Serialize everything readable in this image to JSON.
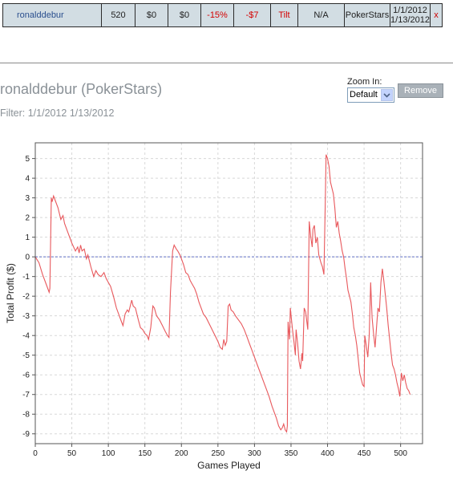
{
  "results_row": {
    "player": "ronalddebur",
    "games": "520",
    "col3": "$0",
    "col4": "$0",
    "roi": "-15%",
    "profit": "-$7",
    "status": "Tilt",
    "col8": "N/A",
    "site": "PokerStars",
    "date_from": "1/1/2012",
    "date_to": "1/13/2012",
    "close_glyph": "x"
  },
  "header": {
    "title": "ronalddebur (PokerStars)",
    "filter": "Filter: 1/1/2012 1/13/2012"
  },
  "zoom": {
    "label": "Zoom In:",
    "selected": "Default"
  },
  "remove_label": "Remove",
  "colors": {
    "line": "#e8585c",
    "zero_line": "#6070c8",
    "grid": "#d8d8d8",
    "table_bg": "#d2dde3",
    "negative_text": "#d40000"
  },
  "chart_data": {
    "type": "line",
    "xlabel": "Games Played",
    "ylabel": "Total Profit ($)",
    "xlim": [
      0,
      530
    ],
    "ylim": [
      -9.5,
      5.8
    ],
    "xticks": [
      0,
      50,
      100,
      150,
      200,
      250,
      300,
      350,
      400,
      450,
      500
    ],
    "yticks": [
      5,
      4,
      3,
      2,
      1,
      0,
      -1,
      -2,
      -3,
      -4,
      -5,
      -6,
      -7,
      -8,
      -9
    ],
    "grid": true,
    "zero_line": true,
    "series": [
      {
        "points": [
          [
            0,
            0
          ],
          [
            5,
            -0.3
          ],
          [
            10,
            -0.9
          ],
          [
            15,
            -1.4
          ],
          [
            19,
            -1.8
          ],
          [
            20,
            -1.6
          ],
          [
            22,
            3.0
          ],
          [
            23,
            2.8
          ],
          [
            25,
            3.1
          ],
          [
            28,
            2.8
          ],
          [
            31,
            2.5
          ],
          [
            33,
            2.2
          ],
          [
            35,
            1.9
          ],
          [
            38,
            2.1
          ],
          [
            40,
            1.7
          ],
          [
            45,
            1.2
          ],
          [
            50,
            0.7
          ],
          [
            55,
            0.3
          ],
          [
            58,
            0.5
          ],
          [
            60,
            0.2
          ],
          [
            62,
            0.6
          ],
          [
            64,
            0.3
          ],
          [
            67,
            0.4
          ],
          [
            70,
            -0.1
          ],
          [
            72,
            0.1
          ],
          [
            76,
            -0.5
          ],
          [
            80,
            -1.0
          ],
          [
            83,
            -0.7
          ],
          [
            86,
            -0.9
          ],
          [
            90,
            -1.0
          ],
          [
            94,
            -0.8
          ],
          [
            97,
            -1.1
          ],
          [
            100,
            -1.3
          ],
          [
            103,
            -1.5
          ],
          [
            107,
            -2.0
          ],
          [
            111,
            -2.6
          ],
          [
            115,
            -3.0
          ],
          [
            118,
            -3.3
          ],
          [
            120,
            -3.5
          ],
          [
            123,
            -2.9
          ],
          [
            126,
            -2.7
          ],
          [
            128,
            -2.8
          ],
          [
            132,
            -2.2
          ],
          [
            134,
            -2.5
          ],
          [
            137,
            -2.6
          ],
          [
            141,
            -3.2
          ],
          [
            144,
            -3.6
          ],
          [
            147,
            -3.7
          ],
          [
            150,
            -3.9
          ],
          [
            153,
            -4.0
          ],
          [
            155,
            -4.2
          ],
          [
            158,
            -3.6
          ],
          [
            161,
            -2.5
          ],
          [
            163,
            -2.6
          ],
          [
            166,
            -3.0
          ],
          [
            170,
            -3.2
          ],
          [
            174,
            -3.5
          ],
          [
            178,
            -3.8
          ],
          [
            181,
            -4.0
          ],
          [
            183,
            -4.1
          ],
          [
            185,
            -1.8
          ],
          [
            188,
            0.3
          ],
          [
            190,
            0.6
          ],
          [
            193,
            0.4
          ],
          [
            195,
            0.3
          ],
          [
            198,
            0.1
          ],
          [
            200,
            -0.1
          ],
          [
            203,
            -0.4
          ],
          [
            206,
            -0.8
          ],
          [
            209,
            -0.9
          ],
          [
            212,
            -1.2
          ],
          [
            215,
            -1.4
          ],
          [
            218,
            -1.6
          ],
          [
            221,
            -1.9
          ],
          [
            224,
            -2.3
          ],
          [
            227,
            -2.6
          ],
          [
            230,
            -2.9
          ],
          [
            234,
            -3.1
          ],
          [
            238,
            -3.4
          ],
          [
            242,
            -3.7
          ],
          [
            246,
            -4.0
          ],
          [
            250,
            -4.3
          ],
          [
            253,
            -4.6
          ],
          [
            256,
            -4.7
          ],
          [
            258,
            -4.2
          ],
          [
            260,
            -4.5
          ],
          [
            262,
            -4.3
          ],
          [
            264,
            -2.5
          ],
          [
            266,
            -2.4
          ],
          [
            268,
            -2.7
          ],
          [
            271,
            -2.8
          ],
          [
            274,
            -3.0
          ],
          [
            278,
            -3.2
          ],
          [
            282,
            -3.4
          ],
          [
            286,
            -3.7
          ],
          [
            290,
            -4.1
          ],
          [
            293,
            -4.4
          ],
          [
            296,
            -4.7
          ],
          [
            300,
            -5.1
          ],
          [
            304,
            -5.5
          ],
          [
            308,
            -5.9
          ],
          [
            312,
            -6.3
          ],
          [
            316,
            -6.7
          ],
          [
            320,
            -7.1
          ],
          [
            324,
            -7.6
          ],
          [
            327,
            -7.9
          ],
          [
            330,
            -8.2
          ],
          [
            333,
            -8.6
          ],
          [
            336,
            -8.8
          ],
          [
            338,
            -8.7
          ],
          [
            340,
            -8.5
          ],
          [
            342,
            -8.8
          ],
          [
            344,
            -8.9
          ],
          [
            345,
            -8.6
          ],
          [
            346,
            -3.3
          ],
          [
            348,
            -4.2
          ],
          [
            349,
            -2.6
          ],
          [
            352,
            -3.7
          ],
          [
            354,
            -4.3
          ],
          [
            356,
            -5.0
          ],
          [
            357,
            -3.7
          ],
          [
            359,
            -4.4
          ],
          [
            361,
            -5.3
          ],
          [
            363,
            -5.7
          ],
          [
            365,
            -4.9
          ],
          [
            366,
            -5.3
          ],
          [
            368,
            -2.6
          ],
          [
            370,
            -2.8
          ],
          [
            371,
            -3.1
          ],
          [
            373,
            -3.7
          ],
          [
            375,
            1.8
          ],
          [
            377,
            1.0
          ],
          [
            379,
            0.5
          ],
          [
            380,
            1.4
          ],
          [
            382,
            1.6
          ],
          [
            384,
            0.7
          ],
          [
            386,
            1.0
          ],
          [
            388,
            0.1
          ],
          [
            391,
            -0.3
          ],
          [
            393,
            -0.5
          ],
          [
            395,
            -0.9
          ],
          [
            397,
            3.0
          ],
          [
            398,
            5.2
          ],
          [
            400,
            5.0
          ],
          [
            402,
            4.6
          ],
          [
            404,
            3.8
          ],
          [
            406,
            3.5
          ],
          [
            408,
            3.2
          ],
          [
            410,
            2.5
          ],
          [
            412,
            1.5
          ],
          [
            414,
            1.8
          ],
          [
            416,
            1.2
          ],
          [
            418,
            0.8
          ],
          [
            420,
            0.3
          ],
          [
            422,
            0.0
          ],
          [
            424,
            -0.6
          ],
          [
            426,
            -1.1
          ],
          [
            428,
            -1.7
          ],
          [
            430,
            -2.0
          ],
          [
            432,
            -2.3
          ],
          [
            434,
            -2.9
          ],
          [
            436,
            -3.6
          ],
          [
            438,
            -4.0
          ],
          [
            440,
            -4.5
          ],
          [
            442,
            -5.2
          ],
          [
            444,
            -5.9
          ],
          [
            446,
            -6.2
          ],
          [
            448,
            -6.5
          ],
          [
            450,
            -6.6
          ],
          [
            451,
            -4.0
          ],
          [
            453,
            -4.5
          ],
          [
            455,
            -5.1
          ],
          [
            457,
            -4.0
          ],
          [
            459,
            -1.3
          ],
          [
            461,
            -3.1
          ],
          [
            463,
            -3.9
          ],
          [
            465,
            -4.6
          ],
          [
            467,
            -3.6
          ],
          [
            469,
            -2.6
          ],
          [
            471,
            -2.8
          ],
          [
            473,
            -1.3
          ],
          [
            475,
            -0.6
          ],
          [
            477,
            -1.2
          ],
          [
            479,
            -1.9
          ],
          [
            481,
            -2.6
          ],
          [
            483,
            -3.5
          ],
          [
            485,
            -4.2
          ],
          [
            487,
            -4.9
          ],
          [
            489,
            -5.5
          ],
          [
            491,
            -5.7
          ],
          [
            493,
            -6.0
          ],
          [
            495,
            -6.4
          ],
          [
            497,
            -6.7
          ],
          [
            499,
            -7.1
          ],
          [
            501,
            -5.9
          ],
          [
            503,
            -6.3
          ],
          [
            505,
            -6.0
          ],
          [
            507,
            -6.4
          ],
          [
            509,
            -6.7
          ],
          [
            511,
            -6.8
          ],
          [
            513,
            -7.0
          ]
        ]
      }
    ]
  }
}
